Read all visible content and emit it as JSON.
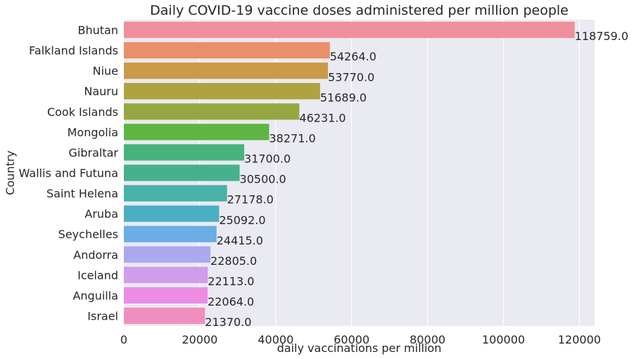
{
  "chart_data": {
    "type": "bar",
    "orientation": "horizontal",
    "title": "Daily COVID-19 vaccine doses administered per million people",
    "xlabel": "daily vaccinations per million",
    "ylabel": "Country",
    "xlim": [
      0,
      124000
    ],
    "xticks": [
      0,
      20000,
      40000,
      60000,
      80000,
      100000,
      120000
    ],
    "xtick_labels": [
      "0",
      "20000",
      "40000",
      "60000",
      "80000",
      "100000",
      "120000"
    ],
    "grid": true,
    "background": "#eaeaf2",
    "categories": [
      "Bhutan",
      "Falkland Islands",
      "Niue",
      "Nauru",
      "Cook Islands",
      "Mongolia",
      "Gibraltar",
      "Wallis and Futuna",
      "Saint Helena",
      "Aruba",
      "Seychelles",
      "Andorra",
      "Iceland",
      "Anguilla",
      "Israel"
    ],
    "values": [
      118759.0,
      54264.0,
      53770.0,
      51689.0,
      46231.0,
      38271.0,
      31700.0,
      30500.0,
      27178.0,
      25092.0,
      24415.0,
      22805.0,
      22113.0,
      22064.0,
      21370.0
    ],
    "value_labels": [
      "118759.0",
      "54264.0",
      "53770.0",
      "51689.0",
      "46231.0",
      "38271.0",
      "31700.0",
      "30500.0",
      "27178.0",
      "25092.0",
      "24415.0",
      "22805.0",
      "22113.0",
      "22064.0",
      "21370.0"
    ],
    "colors": [
      "#f08f9c",
      "#e8906a",
      "#c99a47",
      "#aea241",
      "#96a742",
      "#5fb544",
      "#46b37c",
      "#46b18d",
      "#48b1a8",
      "#4bafc4",
      "#6aaee5",
      "#aba8f0",
      "#d19cec",
      "#ec8ce5",
      "#f08fbf"
    ]
  }
}
